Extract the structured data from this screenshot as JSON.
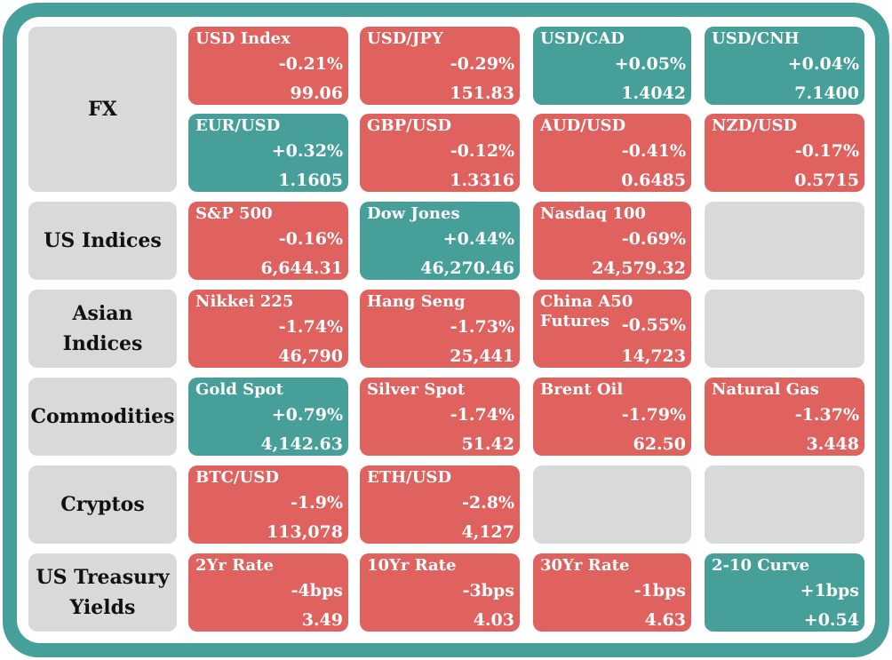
{
  "rows": [
    {
      "category": "FX",
      "tiles": [
        {
          "name": "USD Index",
          "change": "-0.21%",
          "value": "99.06",
          "dir": "down"
        },
        {
          "name": "USD/JPY",
          "change": "-0.29%",
          "value": "151.83",
          "dir": "down"
        },
        {
          "name": "USD/CAD",
          "change": "+0.05%",
          "value": "1.4042",
          "dir": "up"
        },
        {
          "name": "USD/CNH",
          "change": "+0.04%",
          "value": "7.1400",
          "dir": "up"
        }
      ]
    },
    {
      "category": "",
      "tiles": [
        {
          "name": "EUR/USD",
          "change": "+0.32%",
          "value": "1.1605",
          "dir": "up"
        },
        {
          "name": "GBP/USD",
          "change": "-0.12%",
          "value": "1.3316",
          "dir": "down"
        },
        {
          "name": "AUD/USD",
          "change": "-0.41%",
          "value": "0.6485",
          "dir": "down"
        },
        {
          "name": "NZD/USD",
          "change": "-0.17%",
          "value": "0.5715",
          "dir": "down"
        }
      ]
    },
    {
      "category": "US Indices",
      "tiles": [
        {
          "name": "S&P 500",
          "change": "-0.16%",
          "value": "6,644.31",
          "dir": "down"
        },
        {
          "name": "Dow Jones",
          "change": "+0.44%",
          "value": "46,270.46",
          "dir": "up"
        },
        {
          "name": "Nasdaq 100",
          "change": "-0.69%",
          "value": "24,579.32",
          "dir": "down"
        },
        null
      ]
    },
    {
      "category": "Asian Indices",
      "tiles": [
        {
          "name": "Nikkei 225",
          "change": "-1.74%",
          "value": "46,790",
          "dir": "down"
        },
        {
          "name": "Hang Seng",
          "change": "-1.73%",
          "value": "25,441",
          "dir": "down"
        },
        {
          "name": "China A50\nFutures",
          "change": "-0.55%",
          "value": "14,723",
          "dir": "down"
        },
        null
      ]
    },
    {
      "category": "Commodities",
      "tiles": [
        {
          "name": "Gold Spot",
          "change": "+0.79%",
          "value": "4,142.63",
          "dir": "up"
        },
        {
          "name": "Silver Spot",
          "change": "-1.74%",
          "value": "51.42",
          "dir": "down"
        },
        {
          "name": "Brent Oil",
          "change": "-1.79%",
          "value": "62.50",
          "dir": "down"
        },
        {
          "name": "Natural Gas",
          "change": "-1.37%",
          "value": "3.448",
          "dir": "down"
        }
      ]
    },
    {
      "category": "Cryptos",
      "tiles": [
        {
          "name": "BTC/USD",
          "change": "-1.9%",
          "value": "113,078",
          "dir": "down"
        },
        {
          "name": "ETH/USD",
          "change": "-2.8%",
          "value": "4,127",
          "dir": "down"
        },
        null,
        null
      ]
    },
    {
      "category": "US Treasury Yields",
      "tiles": [
        {
          "name": "2Yr Rate",
          "change": "-4bps",
          "value": "3.49",
          "dir": "down"
        },
        {
          "name": "10Yr Rate",
          "change": "-3bps",
          "value": "4.03",
          "dir": "down"
        },
        {
          "name": "30Yr Rate",
          "change": "-1bps",
          "value": "4.63",
          "dir": "down"
        },
        {
          "name": "2-10 Curve",
          "change": "+1bps",
          "value": "+0.54",
          "dir": "up"
        }
      ]
    }
  ],
  "colors": {
    "frame": "#479f99",
    "up": "#479f99",
    "down": "#e0625f",
    "empty": "#d9d9d9"
  }
}
